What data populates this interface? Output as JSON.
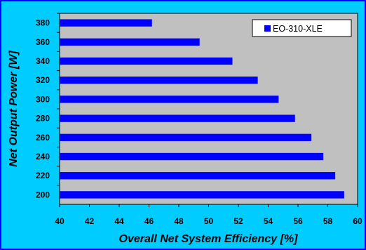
{
  "chart_data": {
    "type": "bar",
    "orientation": "horizontal",
    "categories": [
      "380",
      "360",
      "340",
      "320",
      "300",
      "280",
      "260",
      "240",
      "220",
      "200"
    ],
    "series": [
      {
        "name": "EO-310-XLE",
        "color": "#0000ff",
        "values": [
          46.2,
          49.4,
          51.6,
          53.3,
          54.7,
          55.8,
          56.9,
          57.7,
          58.5,
          59.1
        ]
      }
    ],
    "xlabel": "Overall Net System Efficiency [%]",
    "ylabel": "Net Output Power [W]",
    "xlim": [
      40,
      60
    ],
    "xticks": [
      "40",
      "42",
      "44",
      "46",
      "48",
      "50",
      "52",
      "54",
      "56",
      "58",
      "60"
    ],
    "grid": false,
    "legend": "top-right",
    "colors": {
      "background": "#00ccff",
      "plot_area": "#c0c0c0",
      "bars": "#0000ff"
    }
  }
}
